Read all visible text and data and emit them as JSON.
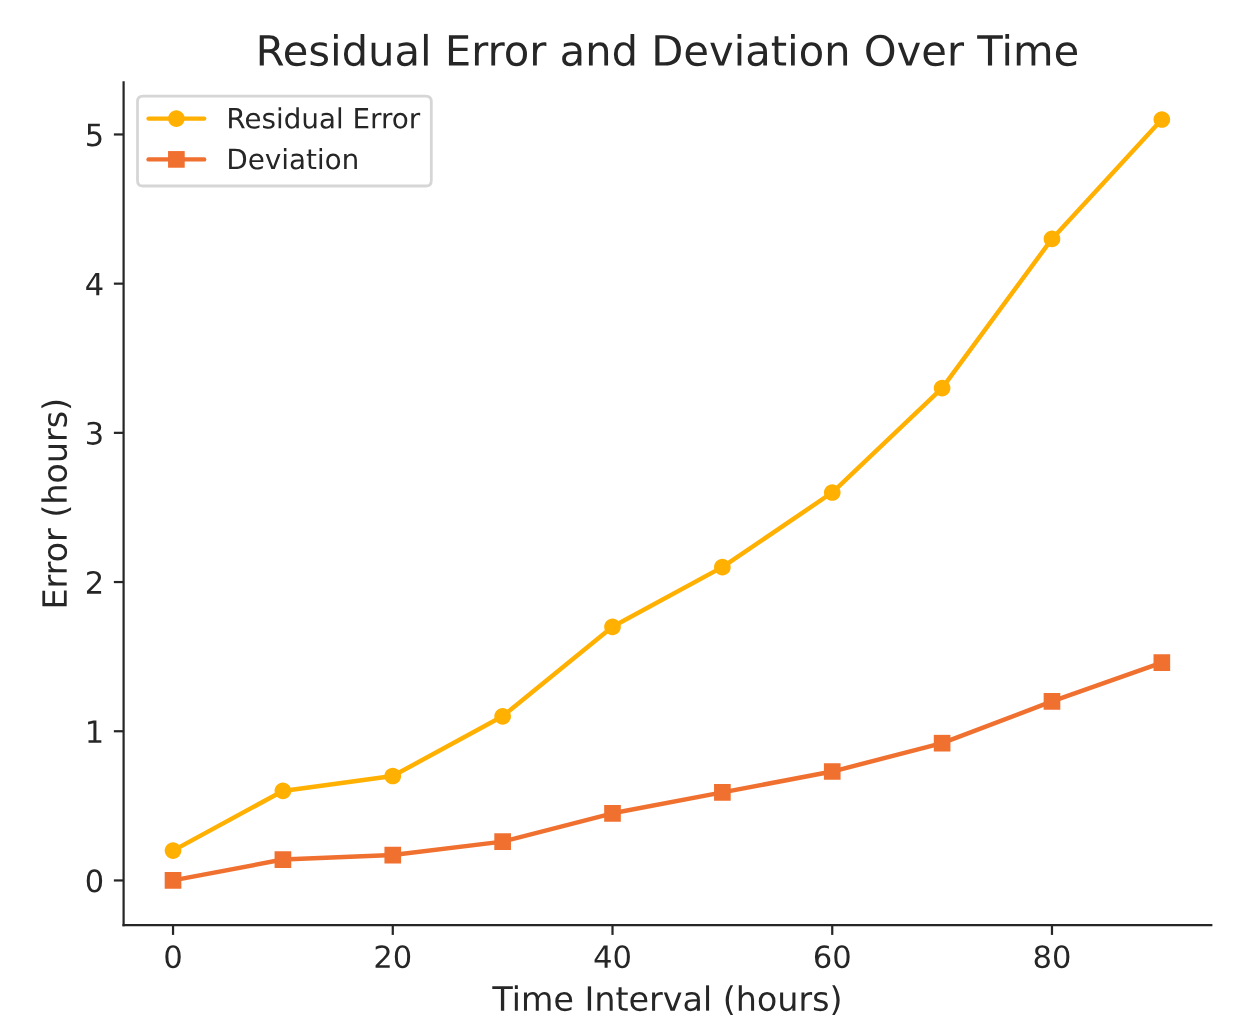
{
  "chart_data": {
    "type": "line",
    "title": "Residual Error and Deviation Over Time",
    "xlabel": "Time Interval (hours)",
    "ylabel": "Error (hours)",
    "x": [
      0,
      10,
      20,
      30,
      40,
      50,
      60,
      70,
      80,
      90
    ],
    "series": [
      {
        "name": "Residual Error",
        "color": "#ffb000",
        "marker": "circle",
        "values": [
          0.2,
          0.6,
          0.7,
          1.1,
          1.7,
          2.1,
          2.6,
          3.3,
          4.3,
          5.1
        ]
      },
      {
        "name": "Deviation",
        "color": "#f07030",
        "marker": "square",
        "values": [
          0.0,
          0.14,
          0.17,
          0.26,
          0.45,
          0.59,
          0.73,
          0.92,
          1.2,
          1.46
        ]
      }
    ],
    "xlim": [
      -4.5,
      94.5
    ],
    "ylim": [
      -0.3,
      5.35
    ],
    "xticks": [
      0,
      20,
      40,
      60,
      80
    ],
    "yticks": [
      0,
      1,
      2,
      3,
      4,
      5
    ],
    "grid": false,
    "legend": "top left",
    "line_style": "solid"
  }
}
